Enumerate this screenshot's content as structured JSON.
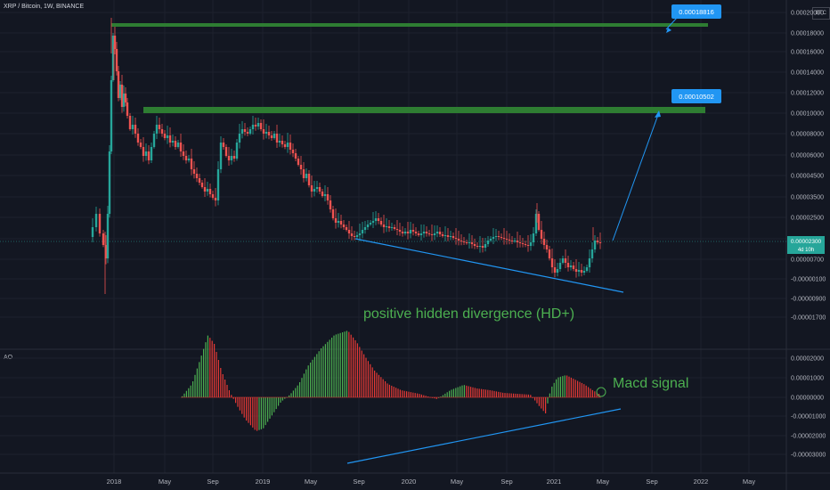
{
  "header": {
    "symbol": "XRP / Bitcoin, 1W, BINANCE"
  },
  "currency_badge": "BTC",
  "indicator": {
    "name": "AO"
  },
  "annotations": {
    "divergence": "positive hidden divergence (HD+)",
    "macd": "Macd signal"
  },
  "colors": {
    "background": "#131722",
    "up": "#26a69a",
    "down": "#ef5350",
    "zone": "#2e7d32",
    "trend": "#2196f3",
    "text_green": "#4caf50",
    "ao_up": "#4caf50",
    "ao_down": "#e53935"
  },
  "chart_data": [
    {
      "type": "candlestick",
      "x_ticks": [
        "2018",
        "May",
        "Sep",
        "2019",
        "May",
        "Sep",
        "2020",
        "May",
        "Sep",
        "2021",
        "May",
        "Sep",
        "2022",
        "May"
      ],
      "y_ticks": [
        "0.00020000",
        "0.00018000",
        "0.00016000",
        "0.00014000",
        "0.00012000",
        "0.00010000",
        "0.00008000",
        "0.00006000",
        "0.00004500",
        "0.00003500",
        "0.00002500",
        "0.00001500",
        "0.00000700",
        "-0.00000100",
        "-0.00000900",
        "-0.00001700"
      ],
      "current_price": "0.00002300",
      "countdown": "4d 10h",
      "levels": [
        {
          "label": "0.00018816",
          "value": 0.00018816
        },
        {
          "label": "0.00010502",
          "value": 0.00010502
        }
      ]
    },
    {
      "type": "bar",
      "name": "AO",
      "y_ticks": [
        "0.00002000",
        "0.00001000",
        "0.00000000",
        "-0.00001000",
        "-0.00002000",
        "-0.00003000"
      ]
    }
  ]
}
